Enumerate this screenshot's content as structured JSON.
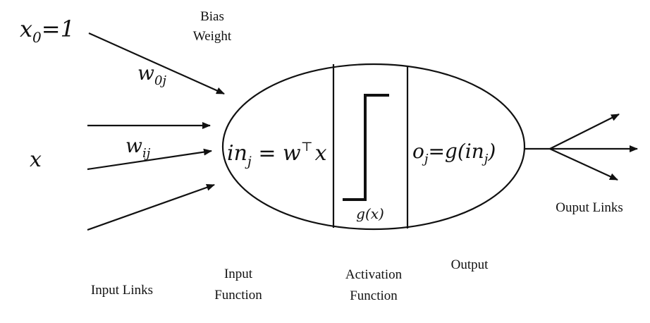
{
  "inputs": {
    "bias_input_var": "x",
    "bias_input_sub": "0",
    "bias_input_value": "=1",
    "bias_weight_var": "w",
    "bias_weight_sub": "0j",
    "input_var": "x",
    "weight_var": "w",
    "weight_sub": "ij"
  },
  "labels": {
    "bias_weight_line1": "Bias",
    "bias_weight_line2": "Weight",
    "input_links": "Input Links",
    "input_function_line1": "Input",
    "input_function_line2": "Function",
    "activation_function_line1": "Activation",
    "activation_function_line2": "Function",
    "output": "Output",
    "output_links": "Ouput Links"
  },
  "neuron": {
    "input_function_lhs": "in",
    "input_function_lhs_sub": "j",
    "input_function_eq": " = ",
    "input_function_w": "w",
    "input_function_sup": "⊤",
    "input_function_x": "x",
    "activation_label": "g(x)",
    "output_var": "o",
    "output_sub": "j",
    "output_eq": "=g(in",
    "output_inner_sub": "j",
    "output_close": ")"
  }
}
